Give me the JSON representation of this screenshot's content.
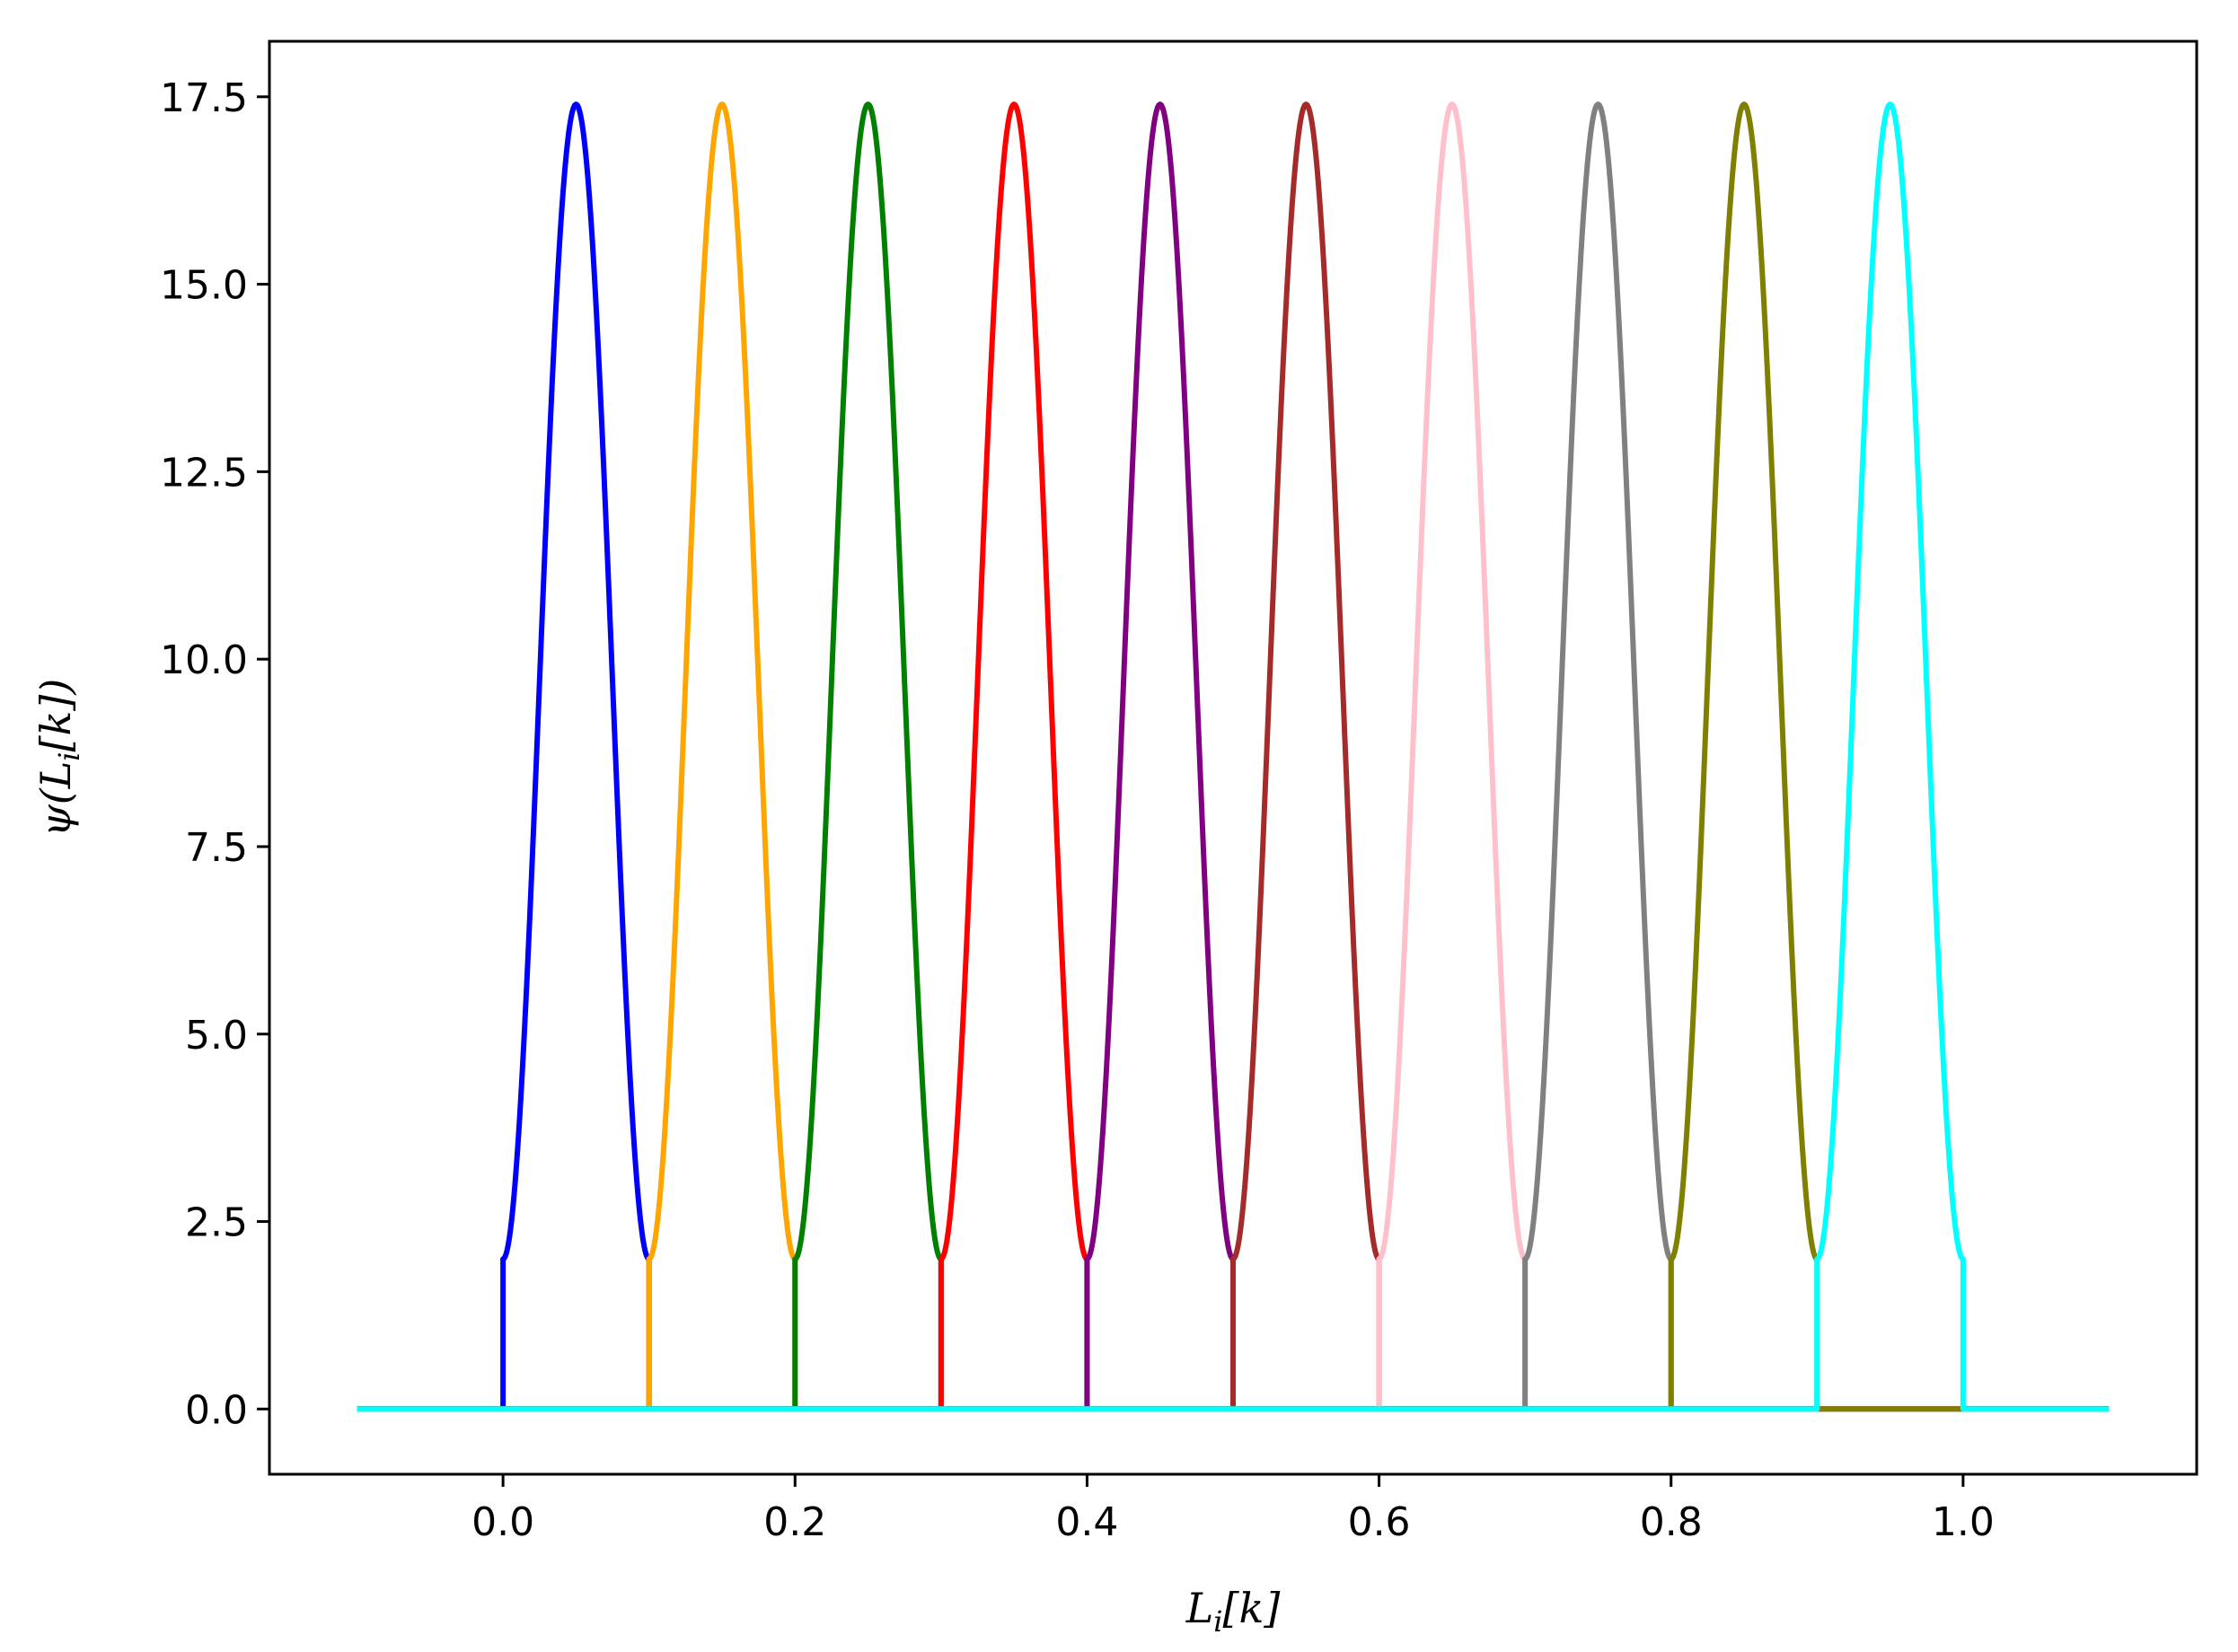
{
  "chart_data": {
    "type": "line",
    "title": "",
    "xlabel": "L_i[k]",
    "ylabel": "ψ(L_i[k])",
    "xlim": [
      -0.16,
      1.16
    ],
    "ylim": [
      -0.87,
      18.24
    ],
    "grid": false,
    "legend": "none",
    "x_ticks": [
      0.0,
      0.2,
      0.4,
      0.6,
      0.8,
      1.0
    ],
    "x_tick_labels": [
      "0.0",
      "0.2",
      "0.4",
      "0.6",
      "0.8",
      "1.0"
    ],
    "y_ticks": [
      0.0,
      2.5,
      5.0,
      7.5,
      10.0,
      12.5,
      15.0,
      17.5
    ],
    "y_tick_labels": [
      "0.0",
      "2.5",
      "5.0",
      "7.5",
      "10.0",
      "12.5",
      "15.0",
      "17.5"
    ],
    "baseline_range": [
      -0.1,
      1.1
    ],
    "edge_value": 2.0,
    "peak_value": 17.4,
    "series": [
      {
        "start": 0.0,
        "end": 0.1,
        "peak_x": 0.05,
        "color": "#0000ff"
      },
      {
        "start": 0.1,
        "end": 0.2,
        "peak_x": 0.15,
        "color": "#ffa500"
      },
      {
        "start": 0.2,
        "end": 0.3,
        "peak_x": 0.25,
        "color": "#008000"
      },
      {
        "start": 0.3,
        "end": 0.4,
        "peak_x": 0.35,
        "color": "#ff0000"
      },
      {
        "start": 0.4,
        "end": 0.5,
        "peak_x": 0.45,
        "color": "#800080"
      },
      {
        "start": 0.5,
        "end": 0.6,
        "peak_x": 0.55,
        "color": "#a52a2a"
      },
      {
        "start": 0.6,
        "end": 0.7,
        "peak_x": 0.65,
        "color": "#ffc0cb"
      },
      {
        "start": 0.7,
        "end": 0.8,
        "peak_x": 0.75,
        "color": "#808080"
      },
      {
        "start": 0.8,
        "end": 0.9,
        "peak_x": 0.85,
        "color": "#808000"
      },
      {
        "start": 0.9,
        "end": 1.0,
        "peak_x": 0.95,
        "color": "#00ffff"
      }
    ]
  }
}
